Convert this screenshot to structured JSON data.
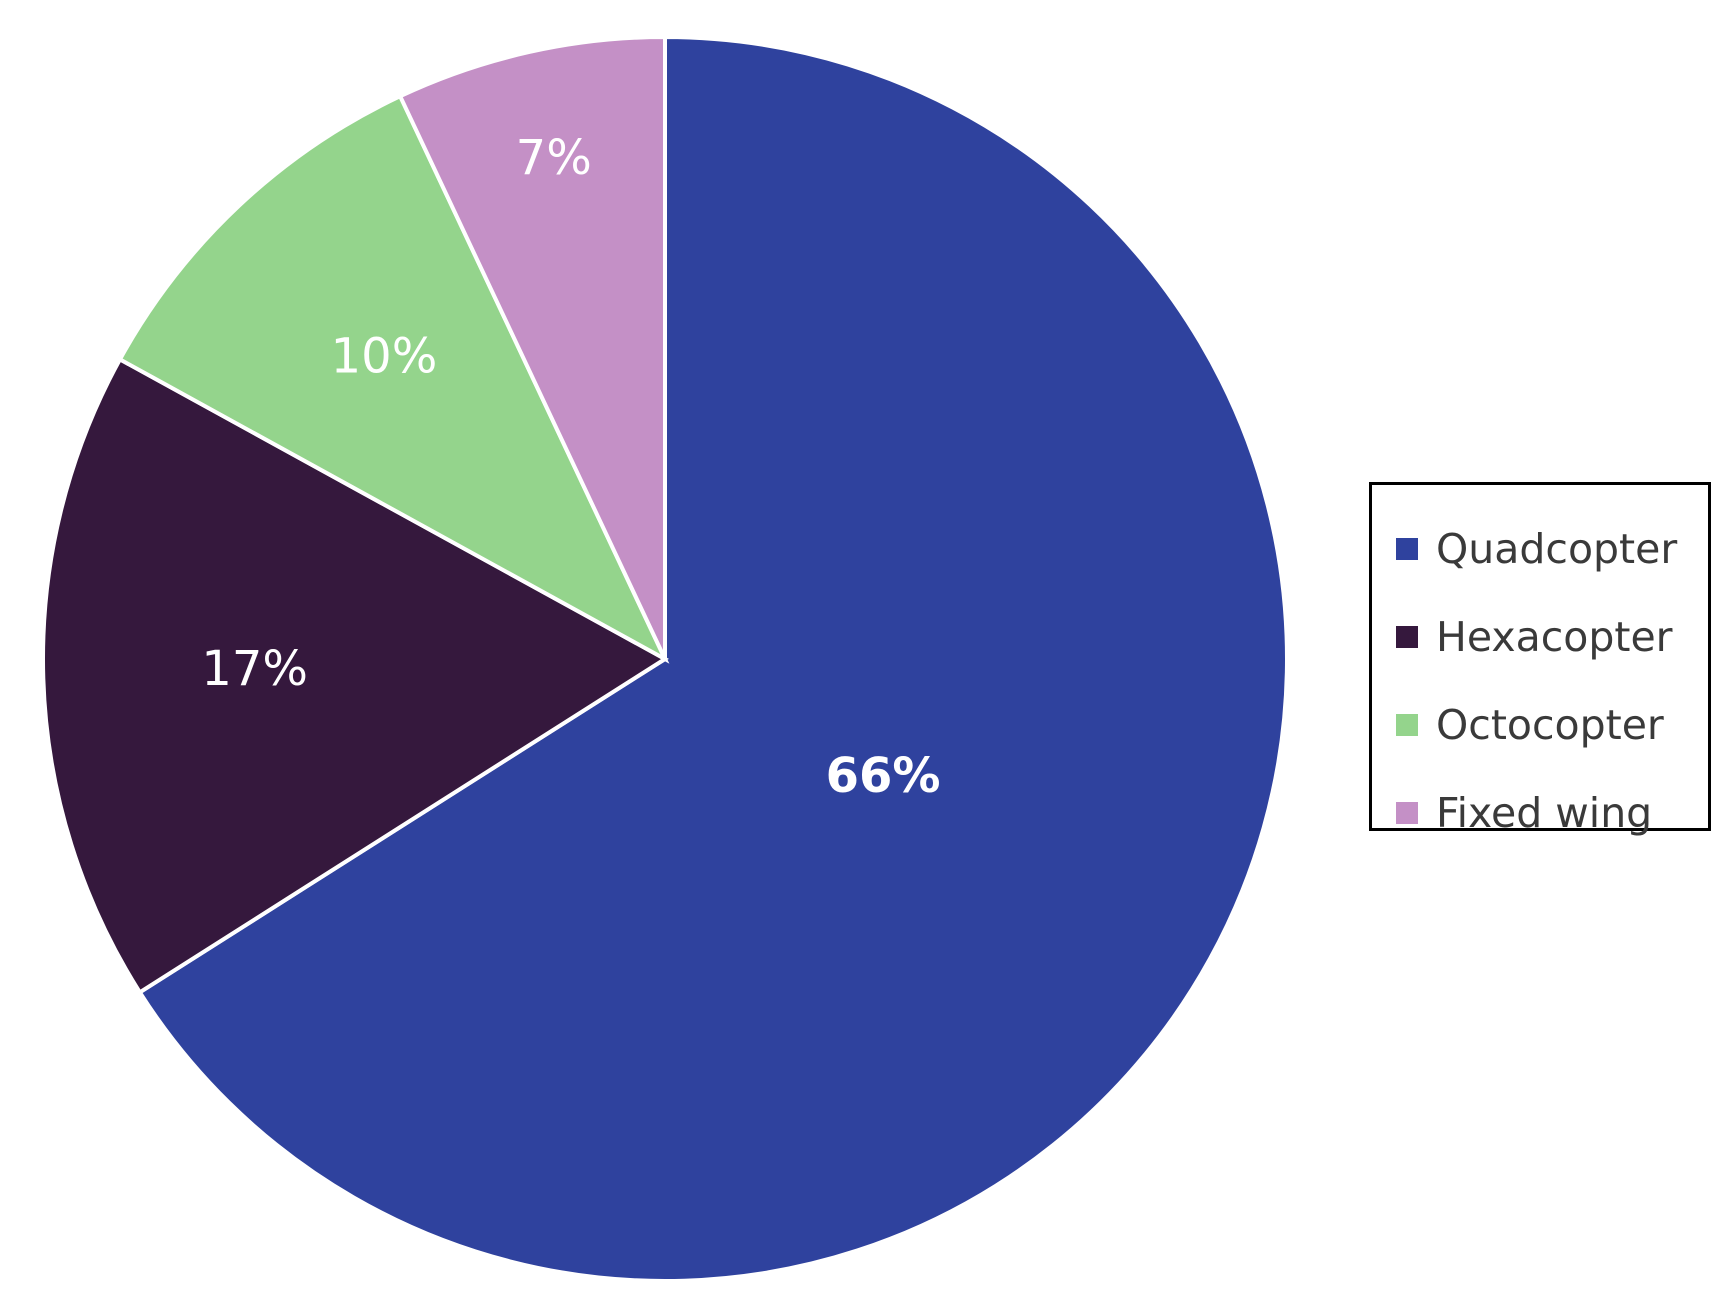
{
  "chart_data": {
    "type": "pie",
    "categories": [
      "Quadcopter",
      "Hexacopter",
      "Octocopter",
      "Fixed wing"
    ],
    "values": [
      66,
      17,
      10,
      7
    ],
    "labels": [
      "66%",
      "17%",
      "10%",
      "7%"
    ],
    "colors": [
      "#2f429e",
      "#35183d",
      "#94d48c",
      "#c490c6"
    ],
    "label_colors": [
      "#ffffff",
      "#ffffff",
      "#ffffff",
      "#ffffff"
    ],
    "label_bold": [
      true,
      false,
      false,
      false
    ],
    "start_angle_deg": 0,
    "direction": "clockwise",
    "legend_position": "right",
    "title": ""
  }
}
